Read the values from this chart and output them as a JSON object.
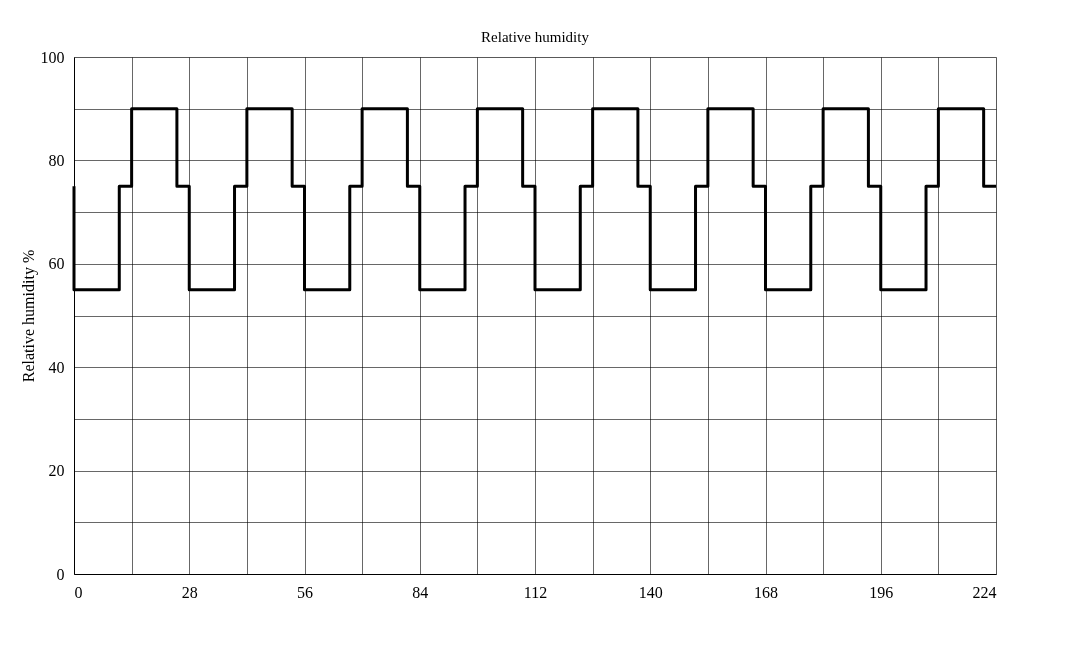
{
  "chart_data": {
    "type": "step",
    "title": "Relative humidity",
    "ylabel": "Relative humidity %",
    "x": [
      0,
      0,
      11,
      14,
      25,
      28,
      39,
      42,
      53,
      56,
      67,
      70,
      81,
      84,
      95,
      98,
      109,
      112,
      123,
      126,
      137,
      140,
      151,
      154,
      165,
      168,
      179,
      182,
      193,
      196,
      207,
      210,
      221,
      224
    ],
    "series": [
      {
        "color": "#000000",
        "values": [
          75,
          55,
          75,
          90,
          75,
          55,
          75,
          90,
          75,
          55,
          75,
          90,
          75,
          55,
          75,
          90,
          75,
          55,
          75,
          90,
          75,
          55,
          75,
          90,
          75,
          55,
          75,
          90,
          75,
          55,
          75,
          90,
          75,
          75
        ]
      }
    ],
    "xlim": [
      0,
      224
    ],
    "ylim": [
      0,
      100
    ],
    "xticks": [
      0,
      {
        "value": 14,
        "label": null
      },
      28,
      {
        "value": 42,
        "label": null
      },
      56,
      {
        "value": 70,
        "label": null
      },
      84,
      {
        "value": 98,
        "label": null
      },
      112,
      {
        "value": 126,
        "label": null
      },
      140,
      {
        "value": 154,
        "label": null
      },
      168,
      {
        "value": 182,
        "label": null
      },
      196,
      {
        "value": 210,
        "label": null
      },
      224
    ],
    "yticks": [
      0,
      {
        "value": 10,
        "label": null
      },
      20,
      {
        "value": 30,
        "label": null
      },
      40,
      {
        "value": 50,
        "label": null
      },
      60,
      {
        "value": 70,
        "label": null
      },
      80,
      {
        "value": 90,
        "label": null
      },
      100
    ],
    "grid": true,
    "marker": "none",
    "line_style": "solid"
  }
}
